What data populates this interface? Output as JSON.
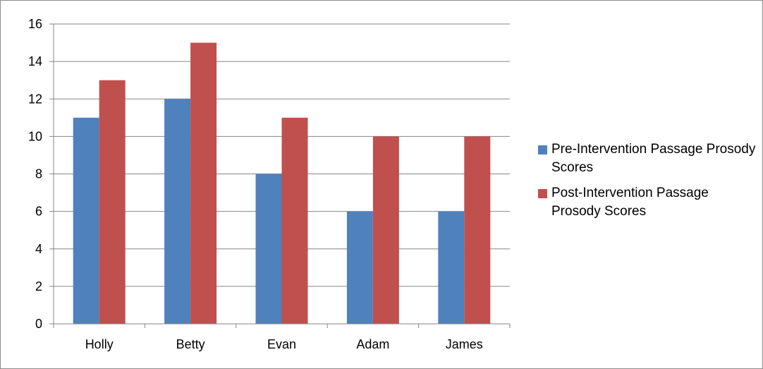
{
  "chart_data": {
    "type": "bar",
    "title": "",
    "xlabel": "",
    "ylabel": "",
    "categories": [
      "Holly",
      "Betty",
      "Evan",
      "Adam",
      "James"
    ],
    "series": [
      {
        "name": "Pre-Intervention Passage Prosody Scores",
        "color": "#4F81BD",
        "values": [
          11,
          12,
          8,
          6,
          6
        ]
      },
      {
        "name": "Post-Intervention Passage Prosody Scores",
        "color": "#C0504D",
        "values": [
          13,
          15,
          11,
          10,
          10
        ]
      }
    ],
    "ylim": [
      0,
      16
    ],
    "yticks": [
      0,
      2,
      4,
      6,
      8,
      10,
      12,
      14,
      16
    ],
    "grid": true,
    "legend_position": "right"
  }
}
